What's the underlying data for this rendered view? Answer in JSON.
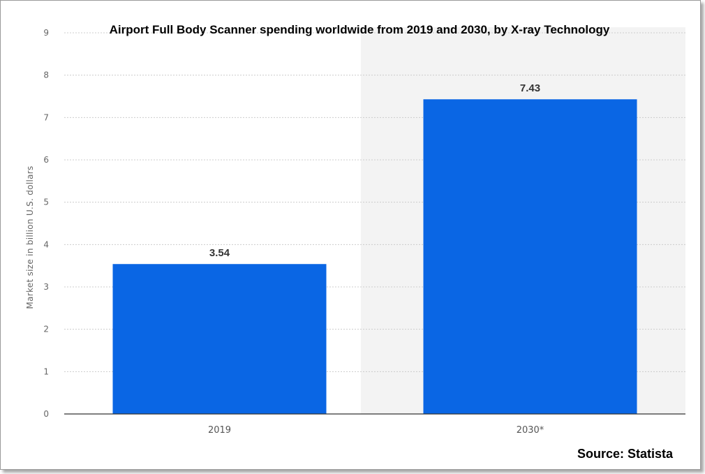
{
  "chart_data": {
    "type": "bar",
    "title": "Airport Full Body Scanner spending worldwide from 2019 and 2030, by X-ray Technology",
    "ylabel": "Market size in billion U.S. dollars",
    "xlabel": "",
    "categories": [
      "2019",
      "2030*"
    ],
    "values": [
      3.54,
      7.43
    ],
    "data_labels": [
      "3.54",
      "7.43"
    ],
    "ylim": [
      0,
      9
    ],
    "yticks": [
      "0",
      "1",
      "2",
      "3",
      "4",
      "5",
      "6",
      "7",
      "8",
      "9"
    ],
    "grid": true,
    "forecast_shading": true,
    "colors": {
      "bar": "#0a66e4",
      "forecast_bg": "#f3f3f3",
      "grid": "#cccccc"
    }
  },
  "source": "Source: Statista"
}
